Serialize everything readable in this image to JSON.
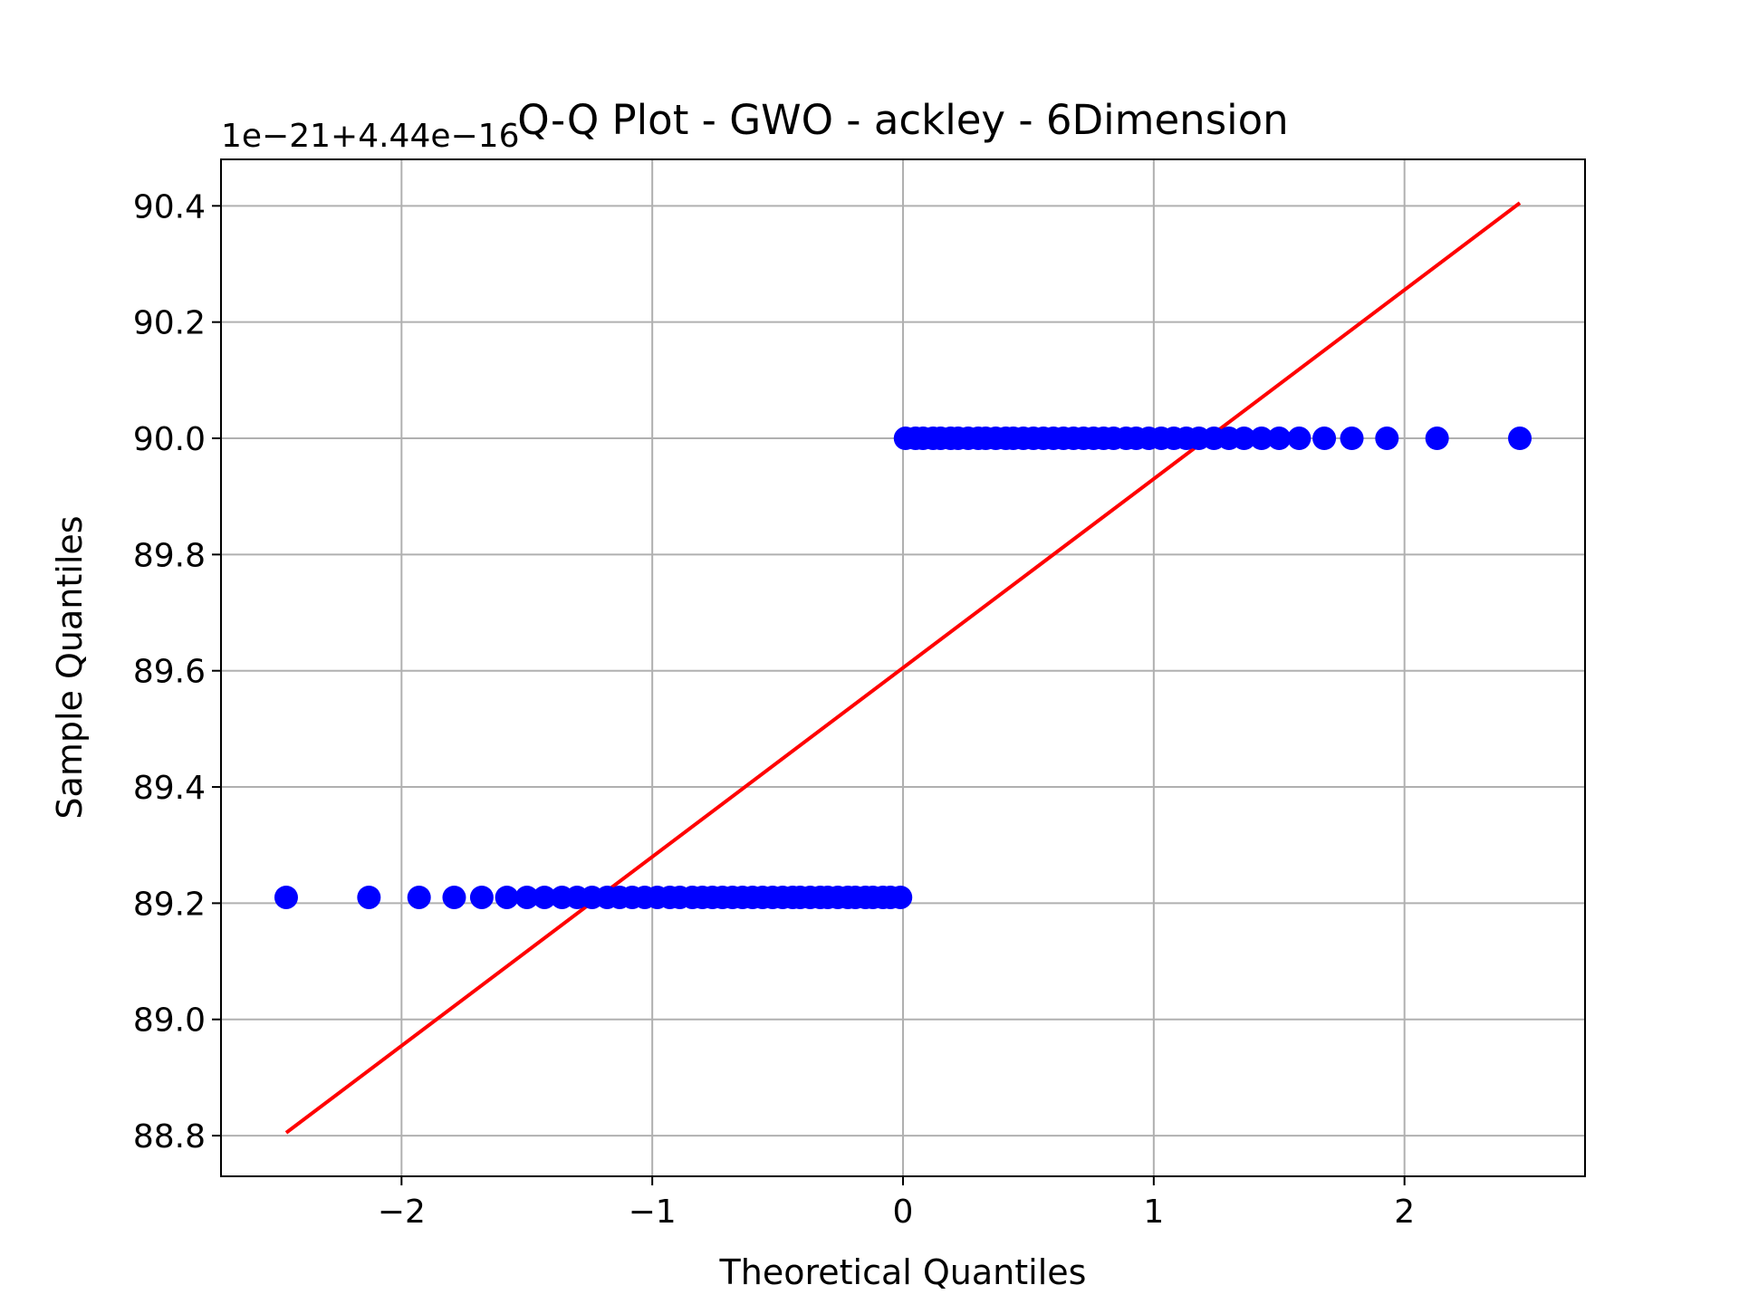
{
  "chart_data": {
    "type": "scatter",
    "title": "Q-Q Plot - GWO - ackley - 6Dimension",
    "xlabel": "Theoretical Quantiles",
    "ylabel": "Sample Quantiles",
    "offset_label": "1e−21+4.44e−16",
    "xlim": [
      -2.72,
      2.72
    ],
    "ylim": [
      88.73,
      90.48
    ],
    "xticks": [
      -2,
      -1,
      0,
      1,
      2
    ],
    "xtick_labels": [
      "−2",
      "−1",
      "0",
      "1",
      "2"
    ],
    "yticks": [
      88.8,
      89.0,
      89.2,
      89.4,
      89.6,
      89.8,
      90.0,
      90.2,
      90.4
    ],
    "ytick_labels": [
      "88.8",
      "89.0",
      "89.2",
      "89.4",
      "89.6",
      "89.8",
      "90.0",
      "90.2",
      "90.4"
    ],
    "grid": true,
    "colors": {
      "points": "#0000ff",
      "line": "#ff0000",
      "grid": "#b0b0b0",
      "axes": "#000000"
    },
    "points": {
      "low_level": 89.21,
      "high_level": 90.0,
      "low_x": [
        -2.46,
        -2.13,
        -1.93,
        -1.79,
        -1.68,
        -1.58,
        -1.5,
        -1.43,
        -1.36,
        -1.3,
        -1.24,
        -1.18,
        -1.13,
        -1.08,
        -1.03,
        -0.98,
        -0.93,
        -0.89,
        -0.84,
        -0.8,
        -0.76,
        -0.72,
        -0.68,
        -0.64,
        -0.6,
        -0.56,
        -0.52,
        -0.48,
        -0.44,
        -0.41,
        -0.37,
        -0.33,
        -0.3,
        -0.26,
        -0.22,
        -0.19,
        -0.15,
        -0.12,
        -0.08,
        -0.05,
        -0.01
      ],
      "high_x": [
        0.01,
        0.05,
        0.08,
        0.12,
        0.15,
        0.19,
        0.22,
        0.26,
        0.3,
        0.33,
        0.37,
        0.41,
        0.44,
        0.48,
        0.52,
        0.56,
        0.6,
        0.64,
        0.68,
        0.72,
        0.76,
        0.8,
        0.84,
        0.89,
        0.93,
        0.98,
        1.03,
        1.08,
        1.13,
        1.18,
        1.24,
        1.3,
        1.36,
        1.43,
        1.5,
        1.58,
        1.68,
        1.79,
        1.93,
        2.13,
        2.46
      ]
    },
    "reference_line": {
      "x": [
        -2.46,
        2.46
      ],
      "y": [
        88.805,
        90.405
      ]
    }
  }
}
